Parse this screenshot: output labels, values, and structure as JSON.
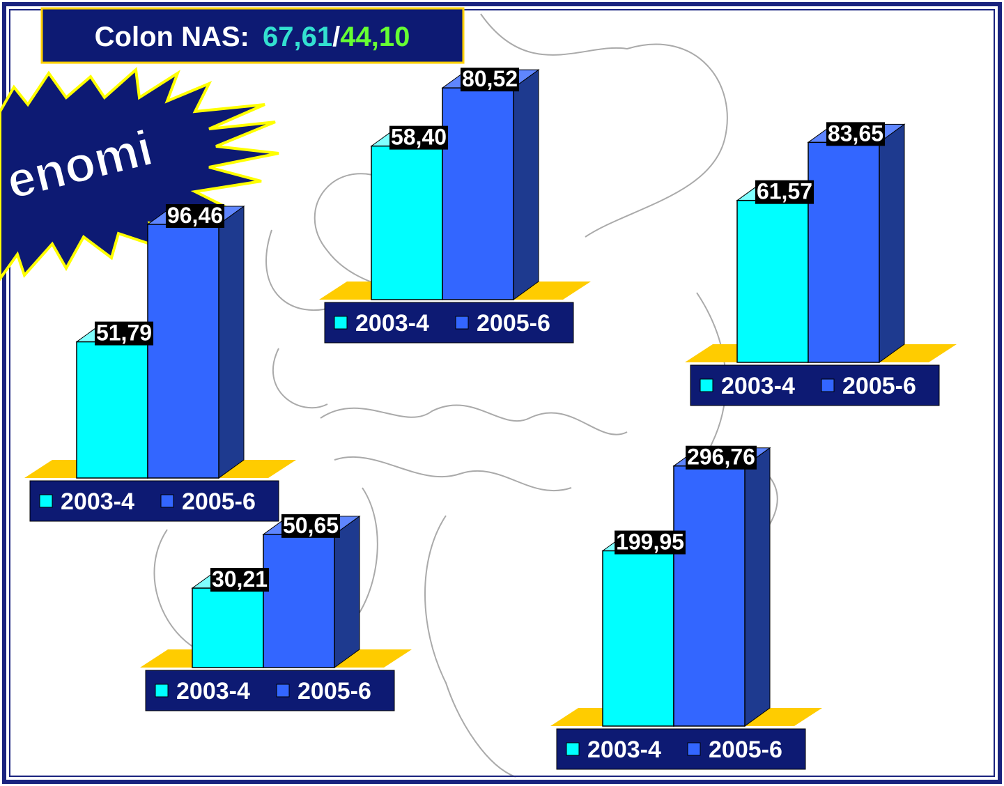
{
  "title": {
    "label": "Colon NAS:",
    "value1": "67,61",
    "separator": "/",
    "value2": "44,10"
  },
  "burst_text": "enomi",
  "chart_data": [
    {
      "type": "bar",
      "ylim": [
        0,
        106
      ],
      "series": [
        {
          "name": "2003-4",
          "color": "#00ffff",
          "values": [
            51.79
          ],
          "value_labels": [
            "51,79"
          ]
        },
        {
          "name": "2005-6",
          "color": "#3366ff",
          "values": [
            96.46
          ],
          "value_labels": [
            "96,46"
          ]
        }
      ]
    },
    {
      "type": "bar",
      "ylim": [
        0,
        106
      ],
      "series": [
        {
          "name": "2003-4",
          "color": "#00ffff",
          "values": [
            58.4
          ],
          "value_labels": [
            "58,40"
          ]
        },
        {
          "name": "2005-6",
          "color": "#3366ff",
          "values": [
            80.52
          ],
          "value_labels": [
            "80,52"
          ]
        }
      ]
    },
    {
      "type": "bar",
      "ylim": [
        0,
        106
      ],
      "series": [
        {
          "name": "2003-4",
          "color": "#00ffff",
          "values": [
            61.57
          ],
          "value_labels": [
            "61,57"
          ]
        },
        {
          "name": "2005-6",
          "color": "#3366ff",
          "values": [
            83.65
          ],
          "value_labels": [
            "83,65"
          ]
        }
      ]
    },
    {
      "type": "bar",
      "ylim": [
        0,
        106
      ],
      "series": [
        {
          "name": "2003-4",
          "color": "#00ffff",
          "values": [
            30.21
          ],
          "value_labels": [
            "30,21"
          ]
        },
        {
          "name": "2005-6",
          "color": "#3366ff",
          "values": [
            50.65
          ],
          "value_labels": [
            "50,65"
          ]
        }
      ]
    },
    {
      "type": "bar",
      "ylim": [
        0,
        318
      ],
      "series": [
        {
          "name": "2003-4",
          "color": "#00ffff",
          "values": [
            199.95
          ],
          "value_labels": [
            "199,95"
          ]
        },
        {
          "name": "2005-6",
          "color": "#3366ff",
          "values": [
            296.76
          ],
          "value_labels": [
            "296,76"
          ]
        }
      ]
    }
  ]
}
